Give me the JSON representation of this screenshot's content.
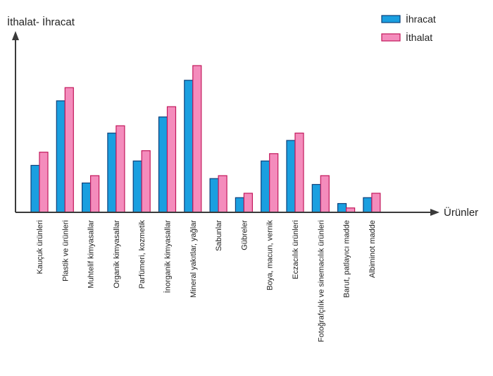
{
  "chart_data": {
    "type": "bar",
    "ylabel": "İthalat- İhracat",
    "xlabel": "Ürünler",
    "legend_position": "top-right",
    "grid": false,
    "y_ticks_shown": false,
    "ylim": [
      0,
      10
    ],
    "categories": [
      "Kauçuk ürünleri",
      "Plastik ve ürünleri",
      "Muhtelif kimyasallar",
      "Organik kimyasallar",
      "Parfümeri, kozmetik",
      "İnorganik kimyasallar",
      "Mineral yakıtlar, yağlar",
      "Sabunlar",
      "Gübreler",
      "Boya, macun, vernik",
      "Eczacılık ürünleri",
      "Fotoğrafçılık ve sinemacılık ürünleri",
      "Barut, patlayıcı madde",
      "Albiminot madde"
    ],
    "series": [
      {
        "name": "İhracat",
        "color": "#1a9fe0",
        "values": [
          3.2,
          7.6,
          2.0,
          5.4,
          3.5,
          6.5,
          9.0,
          2.3,
          1.0,
          3.5,
          4.9,
          1.9,
          0.6,
          1.0
        ]
      },
      {
        "name": "İthalat",
        "color": "#f48cbc",
        "values": [
          4.1,
          8.5,
          2.5,
          5.9,
          4.2,
          7.2,
          10.0,
          2.5,
          1.3,
          4.0,
          5.4,
          2.5,
          0.3,
          1.3
        ]
      }
    ]
  }
}
